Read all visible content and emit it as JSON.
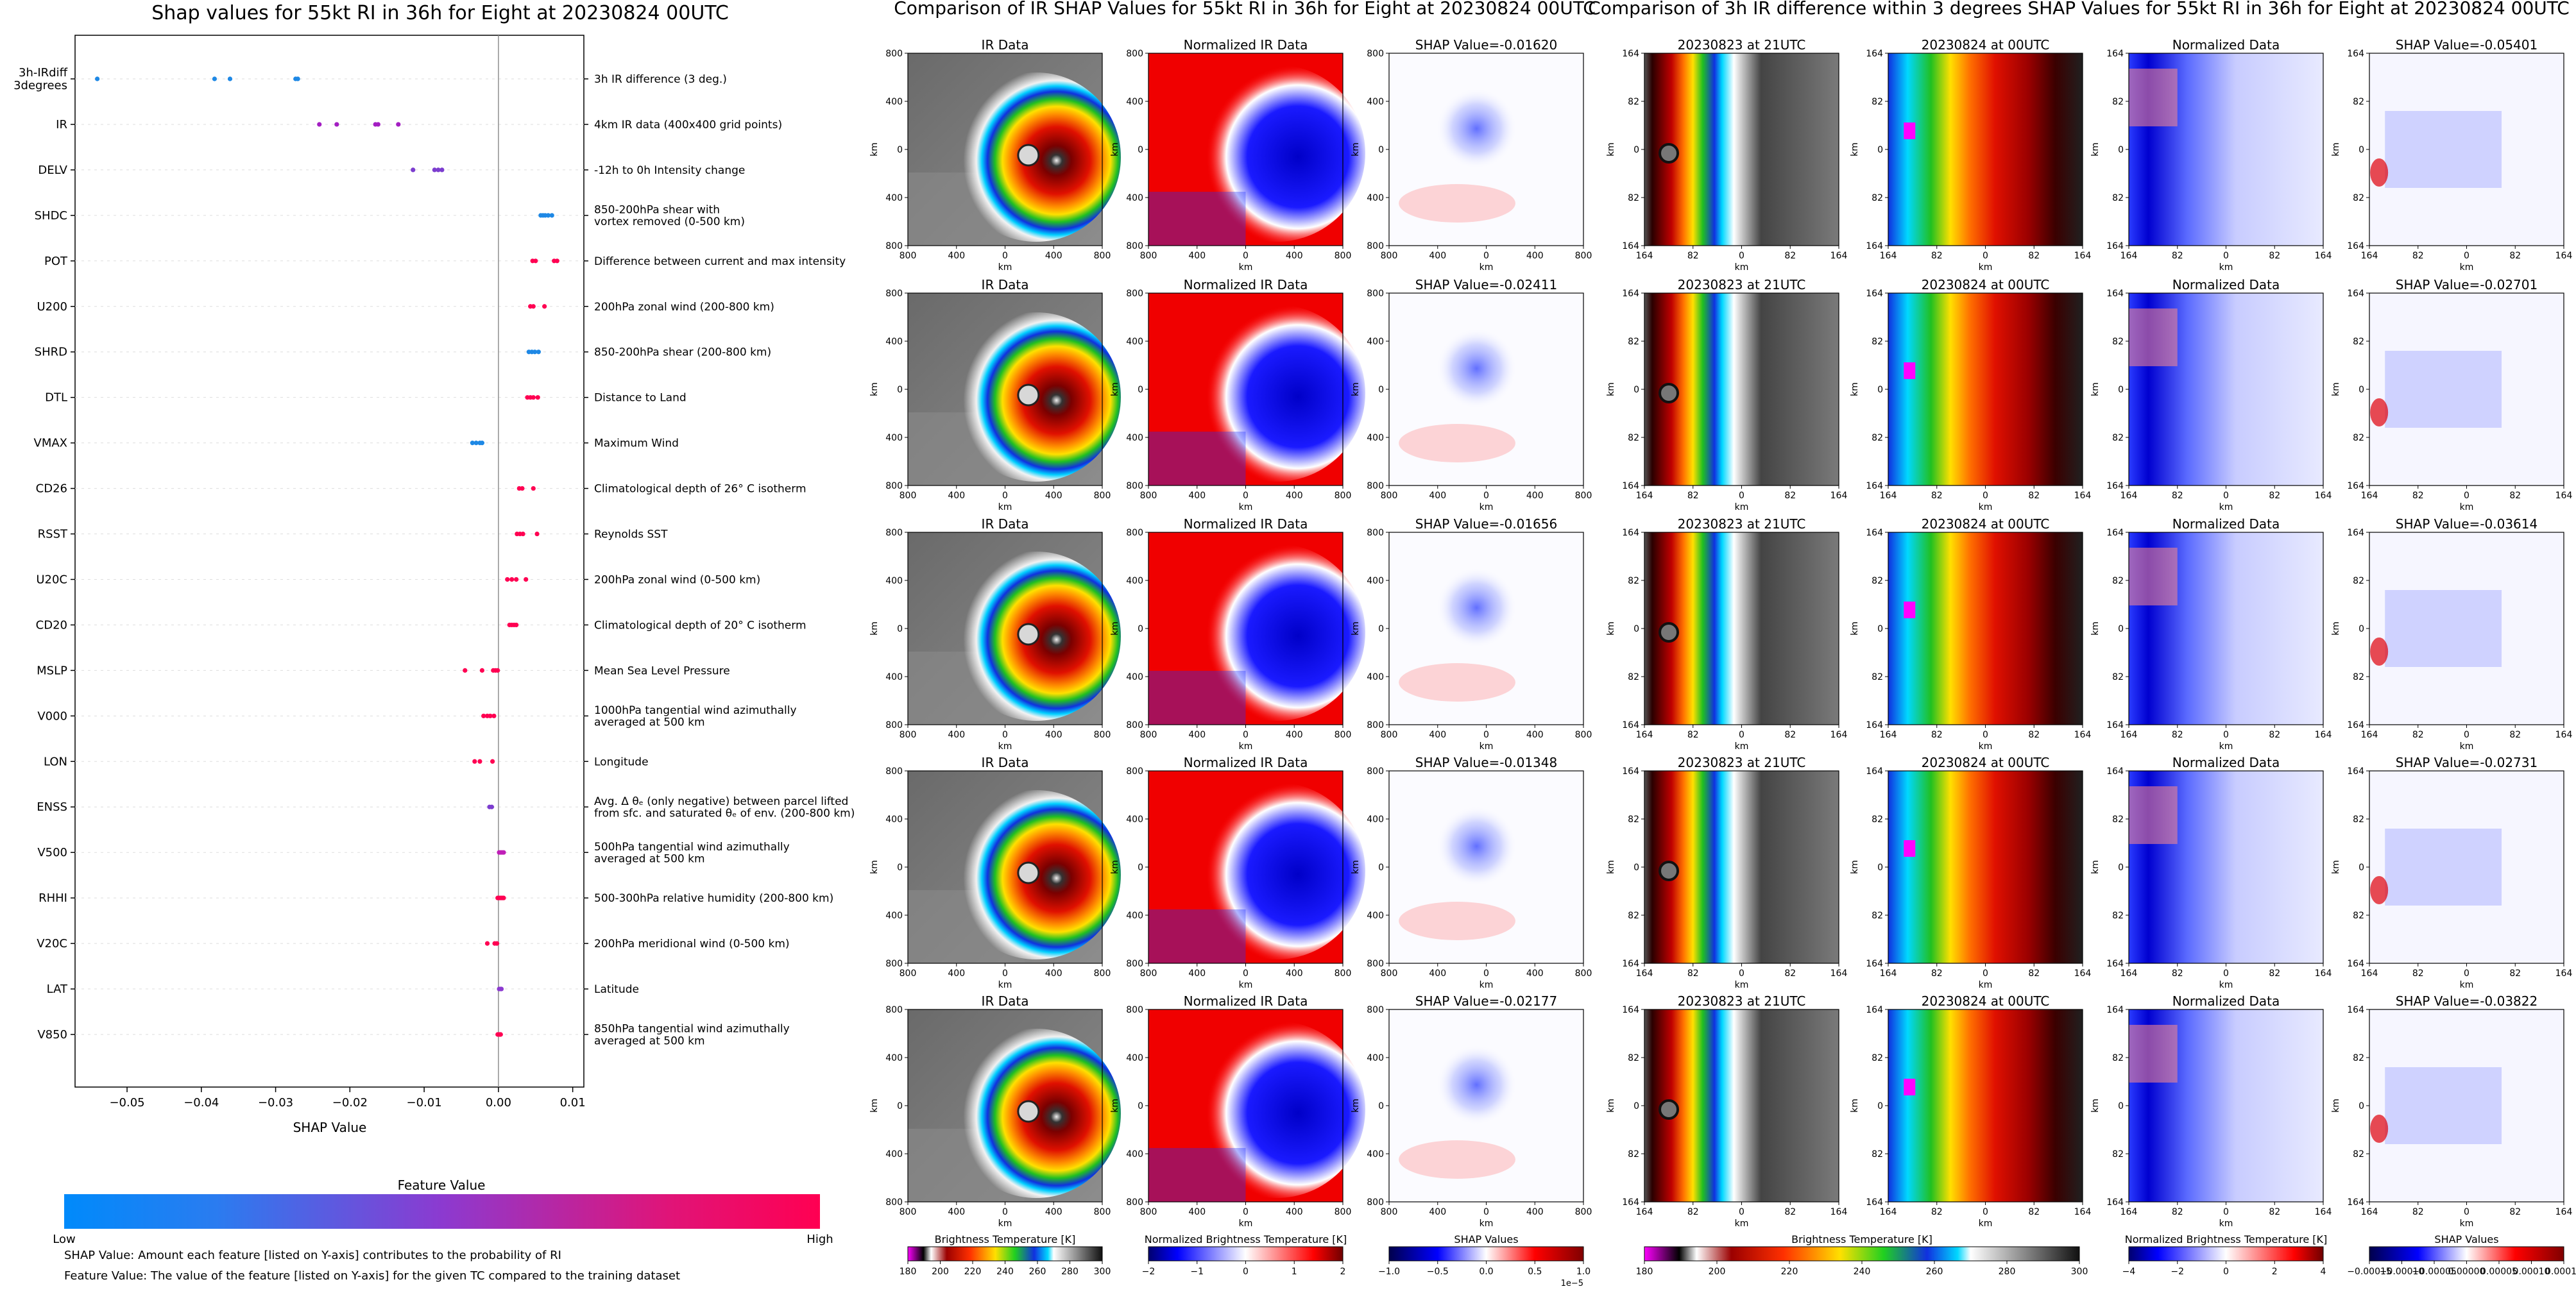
{
  "beeswarm": {
    "title": "Shap values for 55kt RI in 36h for Eight at 20230824 00UTC",
    "xlabel": "SHAP Value",
    "xticks": [
      "−0.05",
      "−0.04",
      "−0.03",
      "−0.02",
      "−0.01",
      "0.00",
      "0.01"
    ],
    "colorbar_title": "Feature Value",
    "colorbar_low": "Low",
    "colorbar_high": "High",
    "note1": "SHAP Value: Amount each feature [listed on Y-axis] contributes to the probability of RI",
    "note2": "Feature Value: The value of the feature [listed on Y-axis] for the given TC compared to the training dataset"
  },
  "ir_panel": {
    "title": "Comparison of IR SHAP Values for 55kt RI in 36h for Eight at 20230824 00UTC",
    "col_titles": [
      "IR Data",
      "Normalized IR Data"
    ],
    "shap_titles": [
      "SHAP Value=-0.01620",
      "SHAP Value=-0.02411",
      "SHAP Value=-0.01656",
      "SHAP Value=-0.01348",
      "SHAP Value=-0.02177"
    ],
    "yticks": [
      "800",
      "400",
      "0",
      "400",
      "800"
    ],
    "xticks": [
      "800",
      "400",
      "0",
      "400",
      "800"
    ],
    "axis_label": "km",
    "cbars": [
      {
        "label": "Brightness Temperature [K]",
        "ticks": [
          "180",
          "200",
          "220",
          "240",
          "260",
          "280",
          "300"
        ]
      },
      {
        "label": "Normalized Brightness Temperature [K]",
        "ticks": [
          "−2",
          "−1",
          "0",
          "1",
          "2"
        ]
      },
      {
        "label": "SHAP Values",
        "ticks": [
          "−1.0",
          "−0.5",
          "0.0",
          "0.5",
          "1.0"
        ],
        "offset": "1e−5"
      }
    ]
  },
  "diff_panel": {
    "title": "Comparison of 3h IR difference within 3 degrees SHAP Values for 55kt RI in 36h for Eight at 20230824 00UTC",
    "col_titles": [
      "20230823 at 21UTC",
      "20230824 at 00UTC",
      "Normalized Data"
    ],
    "shap_titles": [
      "SHAP Value=-0.05401",
      "SHAP Value=-0.02701",
      "SHAP Value=-0.03614",
      "SHAP Value=-0.02731",
      "SHAP Value=-0.03822"
    ],
    "yticks": [
      "164",
      "82",
      "0",
      "82",
      "164"
    ],
    "xticks": [
      "164",
      "82",
      "0",
      "82",
      "164"
    ],
    "axis_label": "km",
    "cbars": [
      {
        "label": "Brightness Temperature [K]",
        "ticks": [
          "180",
          "200",
          "220",
          "240",
          "260",
          "280",
          "300"
        ]
      },
      {
        "label": "Normalized Brightness Temperature [K]",
        "ticks": [
          "−4",
          "−2",
          "0",
          "2",
          "4"
        ]
      },
      {
        "label": "SHAP Values",
        "ticks": [
          "−0.00015",
          "−0.00010",
          "−0.00005",
          "0.00000",
          "0.00005",
          "0.00010",
          "0.00015"
        ]
      }
    ]
  },
  "chart_data": {
    "type": "scatter",
    "title": "Shap values for 55kt RI in 36h for Eight at 20230824 00UTC",
    "xlabel": "SHAP Value",
    "ylabel": "",
    "xlim": [
      -0.057,
      0.0115
    ],
    "grid": false,
    "features": [
      {
        "name": "3h-IRdiff\n3degrees",
        "desc": "3h IR difference (3 deg.)",
        "color": "#1e88e5",
        "values": [
          -0.05401,
          -0.03822,
          -0.03614,
          -0.02731,
          -0.02701
        ]
      },
      {
        "name": "IR",
        "desc": "4km IR data (400x400 grid points)",
        "color": "#a31ec2",
        "values": [
          -0.02411,
          -0.02177,
          -0.01656,
          -0.0162,
          -0.01348
        ]
      },
      {
        "name": "DELV",
        "desc": "-12h to 0h Intensity change",
        "color": "#7c3dcf",
        "values": [
          -0.0115,
          -0.0086,
          -0.0081,
          -0.0076
        ]
      },
      {
        "name": "SHDC",
        "desc": "850-200hPa shear with\nvortex removed (0-500 km)",
        "color": "#1e88e5",
        "values": [
          0.0057,
          0.006,
          0.0063,
          0.0067,
          0.0072
        ]
      },
      {
        "name": "POT",
        "desc": "Difference between current and max intensity",
        "color": "#ff0052",
        "values": [
          0.0046,
          0.005,
          0.0075,
          0.0079
        ]
      },
      {
        "name": "U200",
        "desc": "200hPa zonal wind (200-800 km)",
        "color": "#ff0052",
        "values": [
          0.0043,
          0.0047,
          0.0062
        ]
      },
      {
        "name": "SHRD",
        "desc": "850-200hPa shear (200-800 km)",
        "color": "#1e88e5",
        "values": [
          0.0041,
          0.0045,
          0.0049,
          0.0054
        ]
      },
      {
        "name": "DTL",
        "desc": "Distance to Land",
        "color": "#ff0052",
        "values": [
          0.0039,
          0.0043,
          0.0047,
          0.0053
        ]
      },
      {
        "name": "VMAX",
        "desc": "Maximum Wind",
        "color": "#1e88e5",
        "values": [
          -0.0035,
          -0.003,
          -0.0025,
          -0.0022
        ]
      },
      {
        "name": "CD26",
        "desc": "Climatological depth of 26° C isotherm",
        "color": "#ff0052",
        "values": [
          0.0028,
          0.0032,
          0.0047
        ]
      },
      {
        "name": "RSST",
        "desc": "Reynolds SST",
        "color": "#ff0052",
        "values": [
          0.0025,
          0.0029,
          0.0033,
          0.0052
        ]
      },
      {
        "name": "U20C",
        "desc": "200hPa zonal wind (0-500 km)",
        "color": "#ff0052",
        "values": [
          0.0012,
          0.0018,
          0.0024,
          0.0037
        ]
      },
      {
        "name": "CD20",
        "desc": "Climatological depth of 20° C isotherm",
        "color": "#ff0052",
        "values": [
          0.0015,
          0.0018,
          0.0021,
          0.0024
        ]
      },
      {
        "name": "MSLP",
        "desc": "Mean Sea Level Pressure",
        "color": "#ff0052",
        "values": [
          -0.0045,
          -0.0022,
          -0.0007,
          -0.0004,
          -0.0001
        ]
      },
      {
        "name": "V000",
        "desc": "1000hPa tangential wind azimuthally\naveraged at 500 km",
        "color": "#ff0052",
        "values": [
          -0.002,
          -0.0015,
          -0.0011,
          -0.0006
        ]
      },
      {
        "name": "LON",
        "desc": "Longitude",
        "color": "#ff0052",
        "values": [
          -0.0032,
          -0.0025,
          -0.0008
        ]
      },
      {
        "name": "ENSS",
        "desc": "Avg. Δ θₑ (only negative) between parcel lifted\nfrom sfc. and saturated θₑ of env. (200-800 km)",
        "color": "#7c3dcf",
        "values": [
          -0.0012,
          -0.0009
        ]
      },
      {
        "name": "V500",
        "desc": "500hPa tangential wind azimuthally\naveraged at 500 km",
        "color": "#c01fb8",
        "values": [
          0.0001,
          0.0003,
          0.0005,
          0.0007
        ]
      },
      {
        "name": "RHHI",
        "desc": "500-300hPa relative humidity (200-800 km)",
        "color": "#ff0052",
        "values": [
          -0.0001,
          0.0001,
          0.0003,
          0.0005,
          0.0007
        ]
      },
      {
        "name": "V20C",
        "desc": "200hPa meridional wind (0-500 km)",
        "color": "#ff0052",
        "values": [
          -0.0015,
          -0.0005,
          -0.0002
        ]
      },
      {
        "name": "LAT",
        "desc": "Latitude",
        "color": "#8c3ad0",
        "values": [
          0.0001,
          0.0003,
          0.0004
        ]
      },
      {
        "name": "V850",
        "desc": "850hPa tangential wind azimuthally\naveraged at 500 km",
        "color": "#ff0052",
        "values": [
          -0.0001,
          0.0001,
          0.0002,
          0.0003
        ]
      }
    ]
  },
  "colors": {
    "low": "#008afb",
    "mid": "#8c3ad0",
    "high": "#ff0052"
  }
}
